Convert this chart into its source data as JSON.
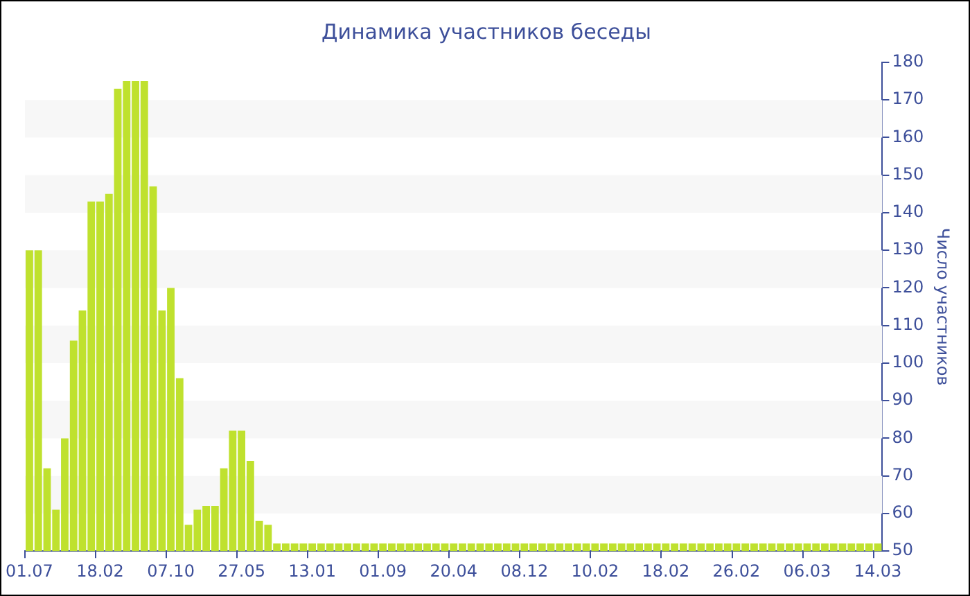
{
  "chart_data": {
    "type": "bar",
    "title": "Динамика участников беседы",
    "ylabel": "Число участников",
    "categories": [
      "01.07",
      null,
      null,
      null,
      null,
      null,
      null,
      null,
      "18.02",
      null,
      null,
      null,
      null,
      null,
      null,
      null,
      "07.10",
      null,
      null,
      null,
      null,
      null,
      null,
      null,
      "27.05",
      null,
      null,
      null,
      null,
      null,
      null,
      null,
      "13.01",
      null,
      null,
      null,
      null,
      null,
      null,
      null,
      "01.09",
      null,
      null,
      null,
      null,
      null,
      null,
      null,
      "20.04",
      null,
      null,
      null,
      null,
      null,
      null,
      null,
      "08.12",
      null,
      null,
      null,
      null,
      null,
      null,
      null,
      "10.02",
      null,
      null,
      null,
      null,
      null,
      null,
      null,
      "18.02",
      null,
      null,
      null,
      null,
      null,
      null,
      null,
      "26.02",
      null,
      null,
      null,
      null,
      null,
      null,
      null,
      "06.03",
      null,
      null,
      null,
      null,
      null,
      null,
      null,
      "14.03"
    ],
    "values": [
      130,
      130,
      72,
      61,
      80,
      106,
      114,
      143,
      143,
      145,
      173,
      175,
      175,
      175,
      147,
      114,
      120,
      96,
      57,
      61,
      62,
      62,
      72,
      82,
      82,
      74,
      58,
      57,
      52,
      52,
      52,
      52,
      52,
      52,
      52,
      52,
      52,
      52,
      52,
      52,
      52,
      52,
      52,
      52,
      52,
      52,
      52,
      52,
      52,
      52,
      52,
      52,
      52,
      52,
      52,
      52,
      52,
      52,
      52,
      52,
      52,
      52,
      52,
      52,
      52,
      52,
      52,
      52,
      52,
      52,
      52,
      52,
      52,
      52,
      52,
      52,
      52,
      52,
      52,
      52,
      52,
      52,
      52,
      52,
      52,
      52,
      52,
      52,
      52,
      52,
      52,
      52,
      52,
      52,
      52,
      52,
      52
    ],
    "color": "#bfe12e",
    "ylim": [
      50,
      180
    ],
    "yticks": [
      50,
      60,
      70,
      80,
      90,
      100,
      110,
      120,
      130,
      140,
      150,
      160,
      170,
      180
    ],
    "legend": false
  }
}
